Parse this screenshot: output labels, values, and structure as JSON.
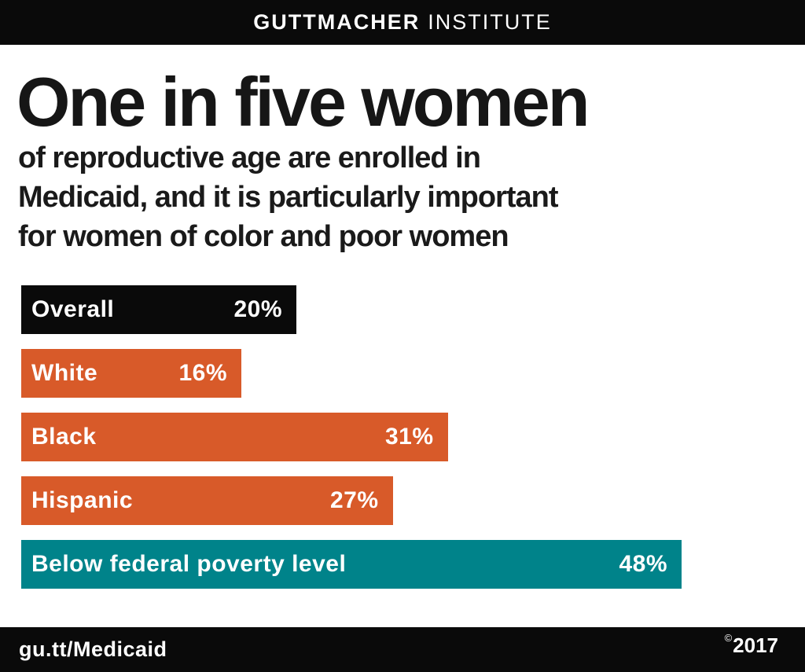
{
  "header": {
    "brand_bold": "GUTTMACHER",
    "brand_light": "INSTITUTE"
  },
  "headline": "One in five women",
  "subtitle_lines": [
    "of reproductive age are enrolled in",
    "Medicaid, and it is particularly important",
    "for women of color and poor women"
  ],
  "chart_data": {
    "type": "bar",
    "orientation": "horizontal",
    "title": "One in five women of reproductive age are enrolled in Medicaid, and it is particularly important for women of color and poor women",
    "unit": "%",
    "categories": [
      "Overall",
      "White",
      "Black",
      "Hispanic",
      "Below federal poverty level"
    ],
    "values": [
      20,
      16,
      31,
      27,
      48
    ],
    "value_labels": [
      "20%",
      "16%",
      "31%",
      "27%",
      "48%"
    ],
    "bar_colors": [
      "#0a0a0a",
      "#d85a29",
      "#d85a29",
      "#d85a29",
      "#00838a"
    ],
    "axis_visible": false,
    "grid": false,
    "legend": "none",
    "value_label_position": "inside-right",
    "category_label_position": "inside-left"
  },
  "footer": {
    "link": "gu.tt/Medicaid",
    "copyright_symbol": "©",
    "year": "2017"
  },
  "colors": {
    "accent_orange": "#d85a29",
    "accent_teal": "#00838a",
    "bar_black": "#0a0a0a",
    "background": "#ffffff",
    "text": "#1a1a1a"
  }
}
